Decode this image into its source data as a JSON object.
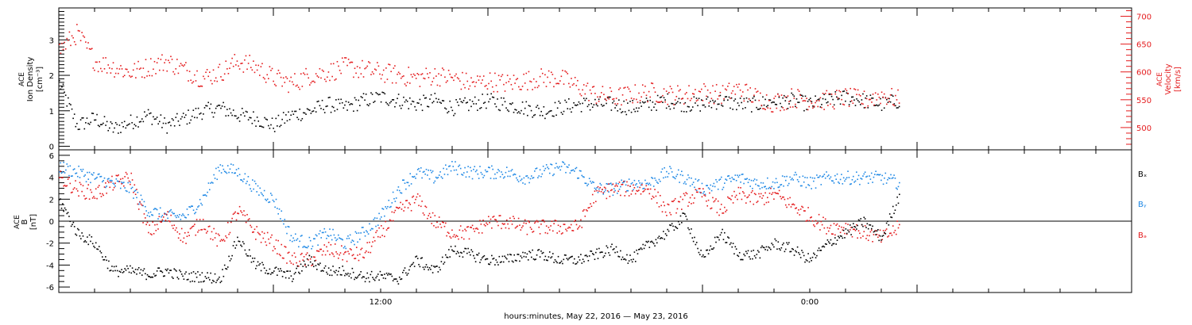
{
  "colors": {
    "black": "#000000",
    "red": "#e41a1c",
    "blue": "#1e88e5"
  },
  "xlabel": "hours:minutes, May 22, 2016 — May 23, 2016",
  "chart_data": [
    {
      "type": "scatter",
      "panel": "plasma",
      "ylabel": [
        "ACE",
        "Ion Density",
        "[cm⁻³]"
      ],
      "ylabel_right": [
        "ACE",
        "Velocity",
        "[km/s]"
      ],
      "ylim": [
        -0.1,
        3.9
      ],
      "ylim_right": [
        460,
        715
      ],
      "y_ticks": [
        "0",
        "1",
        "2",
        "3"
      ],
      "y_ticks_right": [
        "500",
        "550",
        "600",
        "650",
        "700"
      ],
      "x_ticks": [
        "12:00",
        "0:00"
      ],
      "x_range_hours": [
        0,
        30
      ],
      "data_end_hours": 23.5,
      "series": [
        {
          "name": "density",
          "color": "#000000",
          "axis": "left",
          "hours": [
            0.0,
            0.5,
            1.0,
            1.5,
            2.0,
            2.5,
            3.0,
            3.5,
            4.0,
            4.5,
            5.0,
            5.5,
            6.0,
            6.5,
            7.0,
            7.5,
            8.0,
            8.5,
            9.0,
            9.5,
            10.0,
            10.5,
            11.0,
            11.5,
            12.0,
            12.5,
            13.0,
            13.5,
            14.0,
            14.5,
            15.0,
            15.5,
            16.0,
            16.5,
            17.0,
            17.5,
            18.0,
            18.5,
            19.0,
            19.5,
            20.0,
            20.5,
            21.0,
            21.5,
            22.0,
            22.5,
            23.0,
            23.5
          ],
          "values": [
            1.8,
            0.6,
            0.8,
            0.5,
            0.7,
            0.9,
            0.6,
            0.8,
            1.0,
            1.1,
            0.9,
            0.8,
            0.6,
            0.9,
            1.0,
            1.2,
            1.1,
            1.3,
            1.4,
            1.3,
            1.2,
            1.3,
            1.1,
            1.2,
            1.3,
            1.2,
            1.1,
            1.0,
            1.1,
            1.2,
            1.2,
            1.2,
            1.1,
            1.2,
            1.3,
            1.2,
            1.2,
            1.3,
            1.2,
            1.2,
            1.3,
            1.3,
            1.2,
            1.3,
            1.4,
            1.3,
            1.2,
            1.3
          ]
        },
        {
          "name": "velocity",
          "color": "#e41a1c",
          "axis": "right",
          "hours": [
            0.0,
            0.5,
            1.0,
            1.5,
            2.0,
            2.5,
            3.0,
            3.5,
            4.0,
            4.5,
            5.0,
            5.5,
            6.0,
            6.5,
            7.0,
            7.5,
            8.0,
            8.5,
            9.0,
            9.5,
            10.0,
            10.5,
            11.0,
            11.5,
            12.0,
            12.5,
            13.0,
            13.5,
            14.0,
            14.5,
            15.0,
            15.5,
            16.0,
            16.5,
            17.0,
            17.5,
            18.0,
            18.5,
            19.0,
            19.5,
            20.0,
            20.5,
            21.0,
            21.5,
            22.0,
            22.5,
            23.0,
            23.5
          ],
          "values": [
            640,
            670,
            620,
            610,
            600,
            610,
            620,
            605,
            590,
            600,
            620,
            610,
            590,
            580,
            595,
            600,
            610,
            605,
            600,
            595,
            590,
            595,
            590,
            580,
            585,
            580,
            585,
            590,
            590,
            575,
            560,
            555,
            560,
            565,
            560,
            560,
            565,
            560,
            570,
            555,
            545,
            555,
            550,
            550,
            555,
            550,
            560,
            550
          ]
        }
      ]
    },
    {
      "type": "scatter",
      "panel": "magnetic-field",
      "ylabel": [
        "ACE",
        "B",
        "[nT]"
      ],
      "ylim": [
        -6.5,
        6.5
      ],
      "y_ticks": [
        "6",
        "4",
        "2",
        "0",
        "-2",
        "-4",
        "-6"
      ],
      "x_ticks": [
        "12:00",
        "0:00"
      ],
      "x_range_hours": [
        0,
        30
      ],
      "data_end_hours": 23.5,
      "legend": [
        "Bₓ",
        "Bᵧ",
        "Bₔ"
      ],
      "legend_position": "right",
      "series": [
        {
          "name": "Bx",
          "color": "#000000",
          "hours": [
            0.0,
            0.5,
            1.0,
            1.5,
            2.0,
            2.5,
            3.0,
            3.5,
            4.0,
            4.5,
            5.0,
            5.5,
            6.0,
            6.5,
            7.0,
            7.5,
            8.0,
            8.5,
            9.0,
            9.5,
            10.0,
            10.5,
            11.0,
            11.5,
            12.0,
            12.5,
            13.0,
            13.5,
            14.0,
            14.5,
            15.0,
            15.5,
            16.0,
            16.5,
            17.0,
            17.5,
            18.0,
            18.5,
            19.0,
            19.5,
            20.0,
            20.5,
            21.0,
            21.5,
            22.0,
            22.5,
            23.0,
            23.5
          ],
          "values": [
            2.0,
            -1.0,
            -2.0,
            -4.5,
            -4.5,
            -4.8,
            -4.5,
            -5.0,
            -5.0,
            -5.2,
            -1.5,
            -4.0,
            -4.5,
            -5.0,
            -3.5,
            -4.5,
            -4.5,
            -5.0,
            -5.0,
            -5.2,
            -3.5,
            -4.5,
            -2.5,
            -3.0,
            -3.5,
            -3.5,
            -3.0,
            -3.0,
            -3.5,
            -3.5,
            -3.0,
            -2.5,
            -3.5,
            -2.0,
            -1.0,
            0.5,
            -3.5,
            -1.0,
            -3.0,
            -3.0,
            -2.0,
            -2.5,
            -3.5,
            -2.0,
            -1.0,
            0.0,
            -1.5,
            2.5
          ]
        },
        {
          "name": "By",
          "color": "#1e88e5",
          "hours": [
            0.0,
            0.5,
            1.0,
            1.5,
            2.0,
            2.5,
            3.0,
            3.5,
            4.0,
            4.5,
            5.0,
            5.5,
            6.0,
            6.5,
            7.0,
            7.5,
            8.0,
            8.5,
            9.0,
            9.5,
            10.0,
            10.5,
            11.0,
            11.5,
            12.0,
            12.5,
            13.0,
            13.5,
            14.0,
            14.5,
            15.0,
            15.5,
            16.0,
            16.5,
            17.0,
            17.5,
            18.0,
            18.5,
            19.0,
            19.5,
            20.0,
            20.5,
            21.0,
            21.5,
            22.0,
            22.5,
            23.0,
            23.5
          ],
          "values": [
            5.0,
            4.5,
            4.0,
            3.5,
            3.0,
            1.0,
            0.5,
            0.5,
            2.0,
            5.0,
            4.5,
            3.0,
            2.0,
            -1.5,
            -2.0,
            -1.0,
            -2.0,
            -1.0,
            0.5,
            3.0,
            4.5,
            4.0,
            5.0,
            4.5,
            4.5,
            4.5,
            4.0,
            4.5,
            5.0,
            4.5,
            3.0,
            3.0,
            3.5,
            3.5,
            4.5,
            4.0,
            3.0,
            3.5,
            4.0,
            3.5,
            3.5,
            4.0,
            3.5,
            4.0,
            4.0,
            4.0,
            4.0,
            3.5
          ]
        },
        {
          "name": "Bz",
          "color": "#e41a1c",
          "hours": [
            0.0,
            0.5,
            1.0,
            1.5,
            2.0,
            2.5,
            3.0,
            3.5,
            4.0,
            4.5,
            5.0,
            5.5,
            6.0,
            6.5,
            7.0,
            7.5,
            8.0,
            8.5,
            9.0,
            9.5,
            10.0,
            10.5,
            11.0,
            11.5,
            12.0,
            12.5,
            13.0,
            13.5,
            14.0,
            14.5,
            15.0,
            15.5,
            16.0,
            16.5,
            17.0,
            17.5,
            18.0,
            18.5,
            19.0,
            19.5,
            20.0,
            20.5,
            21.0,
            21.5,
            22.0,
            22.5,
            23.0,
            23.5
          ],
          "values": [
            4.0,
            3.0,
            2.5,
            3.5,
            4.0,
            -1.0,
            0.5,
            -1.5,
            0.0,
            -2.0,
            1.0,
            -1.0,
            -2.0,
            -3.5,
            -3.5,
            -2.5,
            -3.0,
            -3.0,
            -1.0,
            1.0,
            2.0,
            0.0,
            -1.0,
            -1.0,
            0.0,
            0.0,
            -0.5,
            -0.5,
            -0.5,
            -0.5,
            2.5,
            3.0,
            3.0,
            3.0,
            1.0,
            2.0,
            2.5,
            1.0,
            2.5,
            2.0,
            2.5,
            1.5,
            0.5,
            -0.5,
            -0.5,
            -1.0,
            -1.5,
            -0.5
          ]
        }
      ]
    }
  ]
}
